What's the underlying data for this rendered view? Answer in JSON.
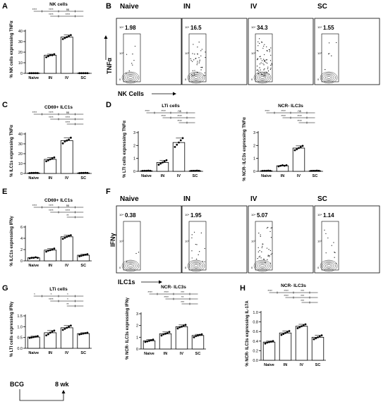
{
  "figure": {
    "panel_letters": [
      "A",
      "B",
      "C",
      "D",
      "E",
      "F",
      "G",
      "H"
    ],
    "flow_group_labels": [
      "Naive",
      "IN",
      "IV",
      "SC"
    ],
    "flow_B": {
      "values": [
        "1.98",
        "16.5",
        "34.3",
        "1.55"
      ],
      "y_axis": "TNFα",
      "x_axis": "NK Cells",
      "y_ticks": [
        "10⁴",
        "10³",
        "0"
      ]
    },
    "flow_F": {
      "values": [
        "0.38",
        "1.95",
        "5.07",
        "1.14"
      ],
      "y_axis": "IFNγ",
      "x_axis": "ILC1s",
      "y_ticks": [
        "10⁴",
        "10³",
        "0"
      ]
    },
    "timeline": {
      "start": "BCG",
      "end": "8 wk"
    },
    "sig_labels": {
      "s4": "****",
      "s3": "***",
      "s2": "**",
      "s1": "*",
      "ns": "ns"
    }
  },
  "chart_data": [
    {
      "id": "A",
      "type": "bar",
      "title": "NK cells",
      "ylabel": "% NK cells expressing TNFα",
      "categories": [
        "Naive",
        "IN",
        "IV",
        "SC"
      ],
      "values": [
        0.2,
        18,
        36,
        0.2
      ],
      "yticks": [
        "40",
        "30",
        "20",
        "10",
        "0"
      ],
      "ylim": [
        0,
        42
      ],
      "points": [
        [
          0.2,
          0.2,
          0.2,
          0.2,
          0.2
        ],
        [
          16,
          17,
          18,
          18,
          19
        ],
        [
          34,
          35,
          36,
          37,
          38
        ],
        [
          0.2,
          0.2,
          0.2,
          0.2,
          0.2
        ]
      ],
      "sig": [
        {
          "from": 0,
          "to": 3,
          "labels": [
            "****",
            "****",
            "ns"
          ]
        },
        {
          "from": 1,
          "to": 3,
          "labels": [
            "****",
            "****"
          ]
        }
      ]
    },
    {
      "id": "C",
      "type": "bar",
      "title": "CD69+ ILC1s",
      "ylabel": "% ILC1s expressing TNFα",
      "categories": [
        "Naive",
        "IN",
        "IV",
        "SC"
      ],
      "values": [
        0.5,
        15,
        35,
        0.5
      ],
      "yticks": [
        "40",
        "30",
        "20",
        "10",
        "0"
      ],
      "ylim": [
        0,
        42
      ],
      "points": [
        [
          0.4,
          0.5,
          0.5,
          0.6,
          0.5
        ],
        [
          13,
          14,
          15,
          16,
          17
        ],
        [
          32,
          34,
          35,
          36,
          38
        ],
        [
          0.4,
          0.5,
          0.5,
          0.6,
          0.5
        ]
      ],
      "sig": [
        {
          "from": 0,
          "to": 3,
          "labels": [
            "****",
            "****",
            "ns"
          ]
        },
        {
          "from": 1,
          "to": 3,
          "labels": [
            "****",
            "****"
          ]
        },
        {
          "from": 2,
          "to": 3,
          "labels": [
            "****"
          ]
        }
      ]
    },
    {
      "id": "D1",
      "type": "bar",
      "title": "LTi cells",
      "ylabel": "% LTI cells expressing TNFα",
      "categories": [
        "Naive",
        "IN",
        "IV",
        "SC"
      ],
      "values": [
        0.05,
        0.8,
        2.6,
        0.05
      ],
      "yticks": [
        "3",
        "2",
        "1",
        "0"
      ],
      "ylim": [
        0,
        3.5
      ],
      "points": [
        [
          0.04,
          0.05,
          0.05,
          0.06,
          0.05
        ],
        [
          0.6,
          0.7,
          0.8,
          0.9,
          1.0
        ],
        [
          2.2,
          2.4,
          2.6,
          2.8,
          3.0
        ],
        [
          0.04,
          0.05,
          0.05,
          0.06,
          0.05
        ]
      ],
      "sig": [
        {
          "from": 0,
          "to": 3,
          "labels": [
            "****",
            "****",
            "ns"
          ]
        },
        {
          "from": 1,
          "to": 3,
          "labels": [
            "****",
            "****"
          ]
        },
        {
          "from": 2,
          "to": 3,
          "labels": [
            "****"
          ]
        }
      ]
    },
    {
      "id": "D2",
      "type": "bar",
      "title": "NCR- ILC3s",
      "ylabel": "% NCR- ILC3s expressing TNFα",
      "categories": [
        "Naive",
        "IN",
        "IV",
        "SC"
      ],
      "values": [
        0.05,
        0.5,
        2.1,
        0.05
      ],
      "yticks": [
        "3",
        "2",
        "1",
        "0"
      ],
      "ylim": [
        0,
        3.5
      ],
      "points": [
        [
          0.04,
          0.05,
          0.05,
          0.06,
          0.05
        ],
        [
          0.45,
          0.5,
          0.55,
          0.5,
          0.55
        ],
        [
          1.9,
          2.0,
          2.1,
          2.2,
          2.3
        ],
        [
          0.04,
          0.05,
          0.05,
          0.06,
          0.05
        ]
      ],
      "sig": [
        {
          "from": 0,
          "to": 3,
          "labels": [
            "****",
            "****",
            "ns"
          ]
        },
        {
          "from": 1,
          "to": 3,
          "labels": [
            "****",
            "****"
          ]
        },
        {
          "from": 2,
          "to": 3,
          "labels": [
            "****"
          ]
        }
      ]
    },
    {
      "id": "E",
      "type": "bar",
      "title": "CD69+ ILC1s",
      "ylabel": "% ILC1s expressing IFNγ",
      "categories": [
        "Naive",
        "IN",
        "IV",
        "SC"
      ],
      "values": [
        0.6,
        2.1,
        4.7,
        1.1
      ],
      "yticks": [
        "6",
        "4",
        "2",
        "0"
      ],
      "ylim": [
        0,
        6.6
      ],
      "points": [
        [
          0.5,
          0.6,
          0.6,
          0.7,
          0.6
        ],
        [
          1.8,
          2.0,
          2.1,
          2.2,
          2.4
        ],
        [
          4.3,
          4.5,
          4.7,
          4.9,
          5.0
        ],
        [
          0.9,
          1.0,
          1.1,
          1.2,
          1.3
        ]
      ],
      "sig": [
        {
          "from": 0,
          "to": 3,
          "labels": [
            "****",
            "****",
            "ns"
          ]
        },
        {
          "from": 1,
          "to": 3,
          "labels": [
            "****",
            "****"
          ]
        },
        {
          "from": 2,
          "to": 3,
          "labels": [
            "**"
          ]
        }
      ]
    },
    {
      "id": "G1",
      "type": "bar",
      "title": "LTi cells",
      "ylabel": "% LTI cells expressing IFNγ",
      "categories": [
        "Naive",
        "IN",
        "IV",
        "SC"
      ],
      "values": [
        0.52,
        0.72,
        0.95,
        0.68
      ],
      "yticks": [
        "1.5",
        "1.0",
        "0.5",
        "0.0"
      ],
      "ylim": [
        0,
        1.5
      ],
      "points": [
        [
          0.48,
          0.5,
          0.52,
          0.54,
          0.56
        ],
        [
          0.6,
          0.65,
          0.72,
          0.78,
          0.82
        ],
        [
          0.85,
          0.9,
          0.95,
          1.0,
          1.05
        ],
        [
          0.64,
          0.66,
          0.68,
          0.7,
          0.72
        ]
      ],
      "sig": [
        {
          "from": 0,
          "to": 3,
          "labels": [
            "*",
            "*",
            "*"
          ]
        },
        {
          "from": 1,
          "to": 3,
          "labels": [
            "****",
            "*"
          ]
        },
        {
          "from": 2,
          "to": 3,
          "labels": [
            "**"
          ]
        }
      ]
    },
    {
      "id": "G2",
      "type": "bar",
      "title": "NCR- ILC3s",
      "ylabel": "% NCR- ILC3s expressing IFNγ",
      "categories": [
        "Naive",
        "IN",
        "IV",
        "SC"
      ],
      "values": [
        0.7,
        1.3,
        1.9,
        1.15
      ],
      "yticks": [
        "3",
        "2",
        "1",
        "0"
      ],
      "ylim": [
        0,
        3
      ],
      "points": [
        [
          0.6,
          0.65,
          0.7,
          0.75,
          0.8
        ],
        [
          1.15,
          1.25,
          1.3,
          1.35,
          1.45
        ],
        [
          1.75,
          1.85,
          1.9,
          2.0,
          2.05
        ],
        [
          1.0,
          1.1,
          1.15,
          1.2,
          1.25
        ]
      ],
      "sig": [
        {
          "from": 0,
          "to": 3,
          "labels": [
            "****",
            "****",
            "***"
          ]
        },
        {
          "from": 1,
          "to": 3,
          "labels": [
            "****",
            "**"
          ]
        },
        {
          "from": 2,
          "to": 3,
          "labels": [
            "***"
          ]
        }
      ]
    },
    {
      "id": "H",
      "type": "bar",
      "title": "NCR- ILC3s",
      "ylabel": "% NCR- ILC3s expressing IL-17A",
      "categories": [
        "Naive",
        "IN",
        "IV",
        "SC"
      ],
      "values": [
        0.38,
        0.57,
        0.71,
        0.48
      ],
      "yticks": [
        "1.0",
        "0.8",
        "0.6",
        "0.4",
        "0.2",
        "0.0"
      ],
      "ylim": [
        0,
        1.0
      ],
      "points": [
        [
          0.35,
          0.37,
          0.38,
          0.39,
          0.4
        ],
        [
          0.53,
          0.55,
          0.57,
          0.59,
          0.61
        ],
        [
          0.67,
          0.69,
          0.71,
          0.73,
          0.75
        ],
        [
          0.44,
          0.46,
          0.48,
          0.5,
          0.52
        ]
      ],
      "sig": [
        {
          "from": 0,
          "to": 3,
          "labels": [
            "****",
            "****",
            "***"
          ]
        },
        {
          "from": 1,
          "to": 3,
          "labels": [
            "****",
            "***"
          ]
        },
        {
          "from": 2,
          "to": 3,
          "labels": [
            "***"
          ]
        }
      ]
    }
  ]
}
